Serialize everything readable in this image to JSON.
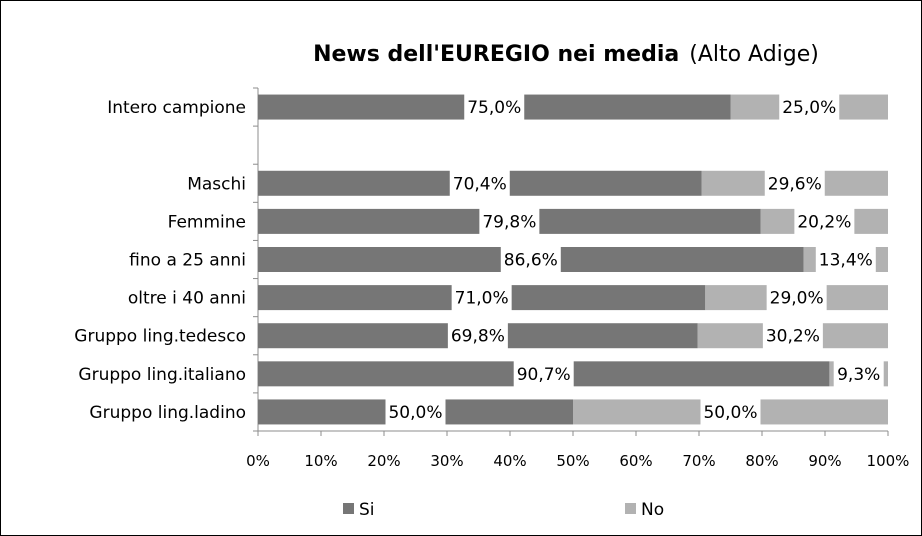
{
  "chart_data": {
    "type": "bar",
    "orientation": "horizontal",
    "stacked": "percent",
    "title": "News dell'EUREGIO nei media",
    "subtitle": "(Alto Adige)",
    "categories": [
      "Intero campione",
      "",
      "Maschi",
      "Femmine",
      "fino a 25 anni",
      "oltre i 40 anni",
      "Gruppo ling.tedesco",
      "Gruppo ling.italiano",
      "Gruppo ling.ladino"
    ],
    "series": [
      {
        "name": "Si",
        "color": "#767676",
        "values": [
          75.0,
          null,
          70.4,
          79.8,
          86.6,
          71.0,
          69.8,
          90.7,
          50.0
        ],
        "labels": [
          "75,0%",
          "",
          "70,4%",
          "79,8%",
          "86,6%",
          "71,0%",
          "69,8%",
          "90,7%",
          "50,0%"
        ]
      },
      {
        "name": "No",
        "color": "#b2b2b2",
        "values": [
          25.0,
          null,
          29.6,
          20.2,
          13.4,
          29.0,
          30.2,
          9.3,
          50.0
        ],
        "labels": [
          "25,0%",
          "",
          "29,6%",
          "20,2%",
          "13,4%",
          "29,0%",
          "30,2%",
          "9,3%",
          "50,0%"
        ]
      }
    ],
    "xlim": [
      0,
      100
    ],
    "xticks": [
      "0%",
      "10%",
      "20%",
      "30%",
      "40%",
      "50%",
      "60%",
      "70%",
      "80%",
      "90%",
      "100%"
    ],
    "legend": "bottom",
    "grid": false
  }
}
